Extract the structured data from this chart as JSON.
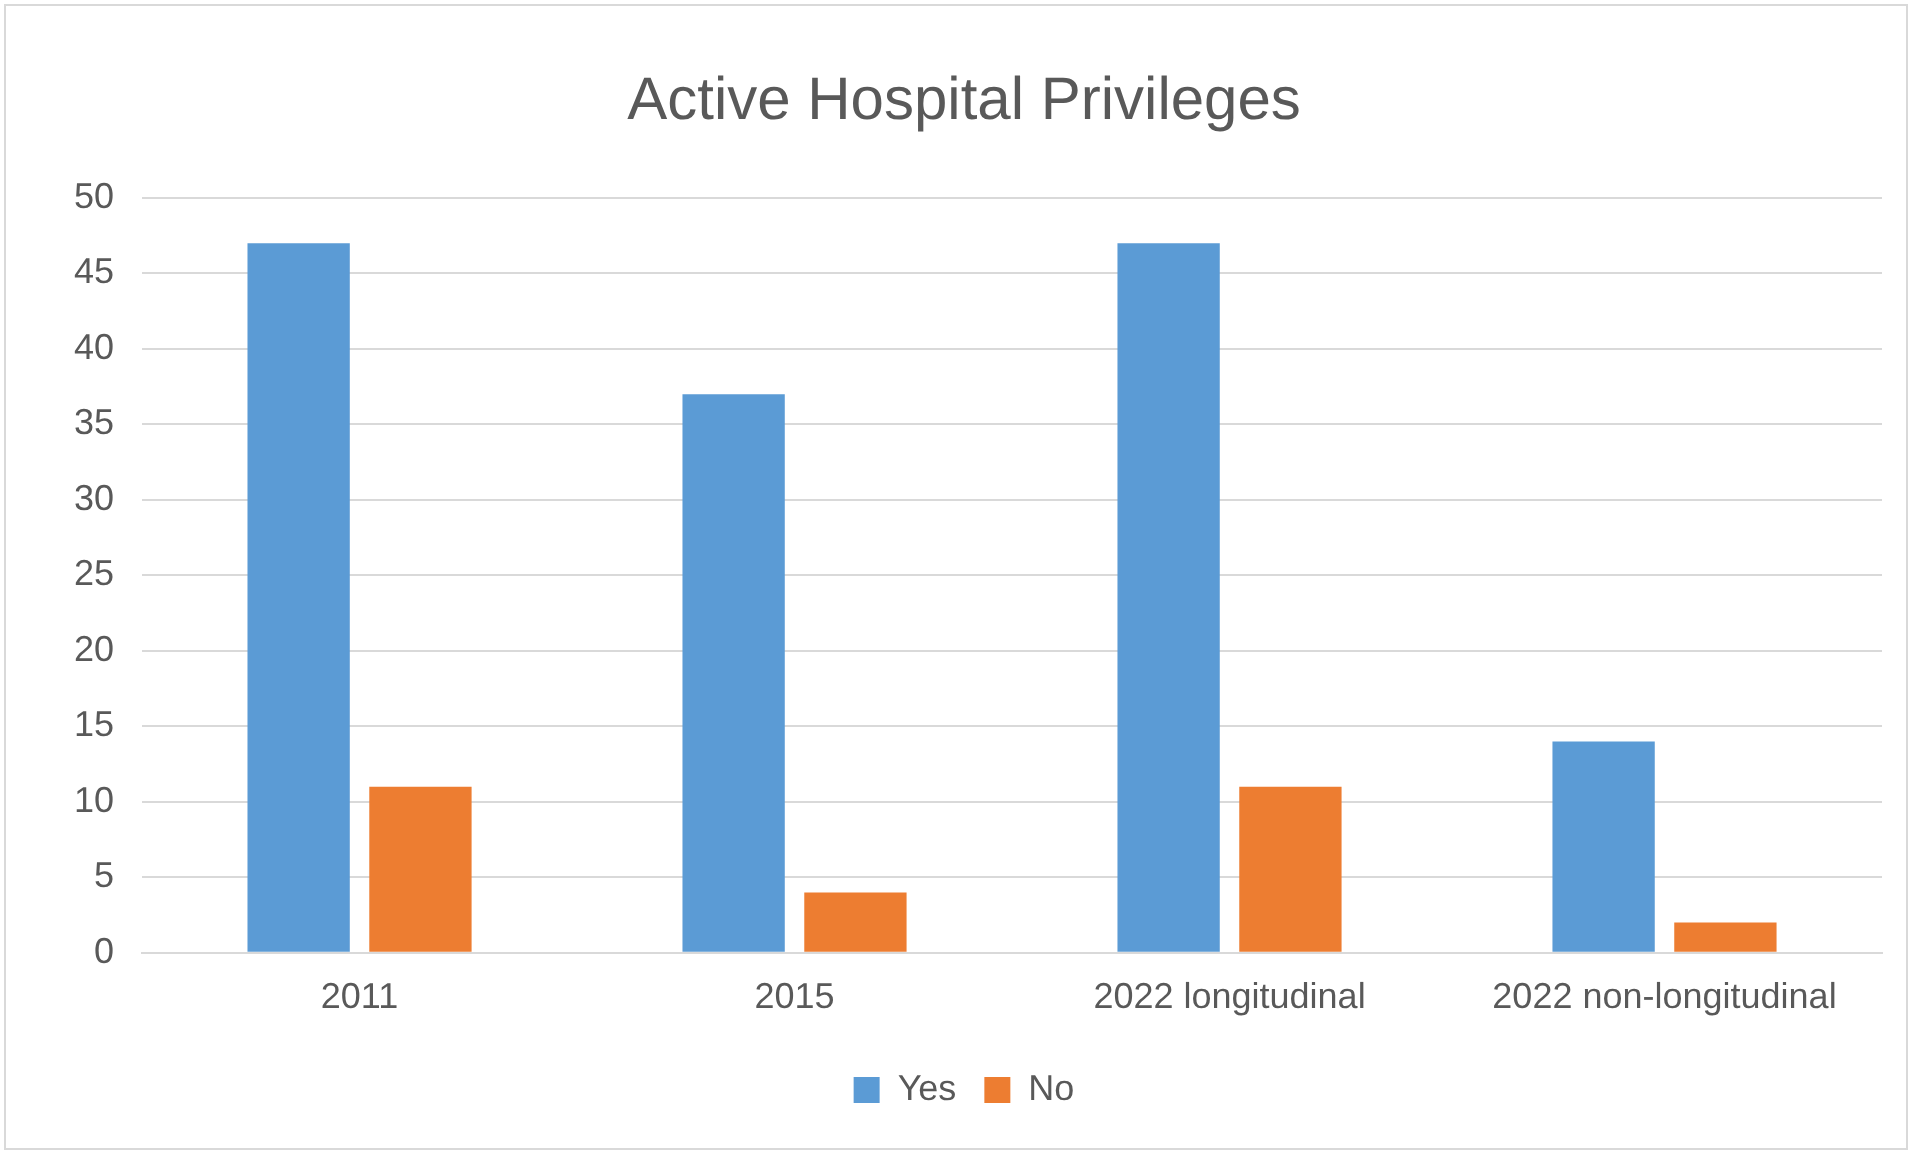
{
  "chart_data": {
    "type": "bar",
    "title": "Active Hospital Privileges",
    "categories": [
      "2011",
      "2015",
      "2022 longitudinal",
      "2022 non-longitudinal"
    ],
    "series": [
      {
        "name": "Yes",
        "color": "#5b9bd5",
        "values": [
          47,
          37,
          47,
          14
        ]
      },
      {
        "name": "No",
        "color": "#ed7d31",
        "values": [
          11,
          4,
          11,
          2
        ]
      }
    ],
    "ylim": [
      0,
      50
    ],
    "yticks": [
      0,
      5,
      10,
      15,
      20,
      25,
      30,
      35,
      40,
      45,
      50
    ],
    "grid": "y",
    "legend": "bottom"
  }
}
